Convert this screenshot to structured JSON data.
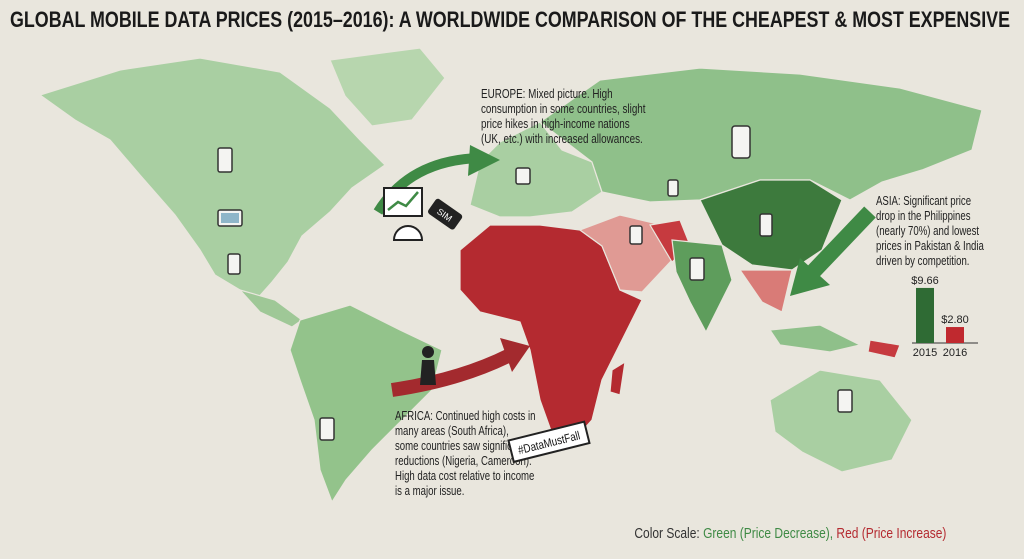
{
  "title": "GLOBAL MOBILE DATA PRICES (2015–2016): A WORLDWIDE COMPARISON OF THE CHEAPEST & MOST EXPENSIVE",
  "annotations": {
    "europe": [
      "EUROPE: Mixed picture. High",
      "consumption in some countries, slight",
      "price hikes in high-income nations",
      "(UK, etc.) with increased allowances."
    ],
    "asia": [
      "ASIA: Significant price",
      "drop in the Philippines",
      "(nearly 70%) and lowest",
      "prices in Pakistan & India",
      "driven by competition."
    ],
    "africa": [
      "AFRICA: Continued high costs in",
      "many areas (South Africa),",
      "some countries saw significant",
      "reductions (Nigeria, Cameroon).",
      "High data cost relative to income",
      "is a major issue."
    ]
  },
  "hashtag": "#DataMustFall",
  "tag_label": "SIM",
  "color_scale": {
    "label": "Color Scale:",
    "green": "Green (Price Decrease),",
    "red": "Red (Price Increase)"
  },
  "chart_data": {
    "type": "bar",
    "categories": [
      "2015",
      "2016"
    ],
    "values": [
      9.66,
      2.8
    ],
    "value_labels": [
      "$9.66",
      "$2.80"
    ],
    "colors": [
      "#2f6b34",
      "#c0292f"
    ]
  }
}
